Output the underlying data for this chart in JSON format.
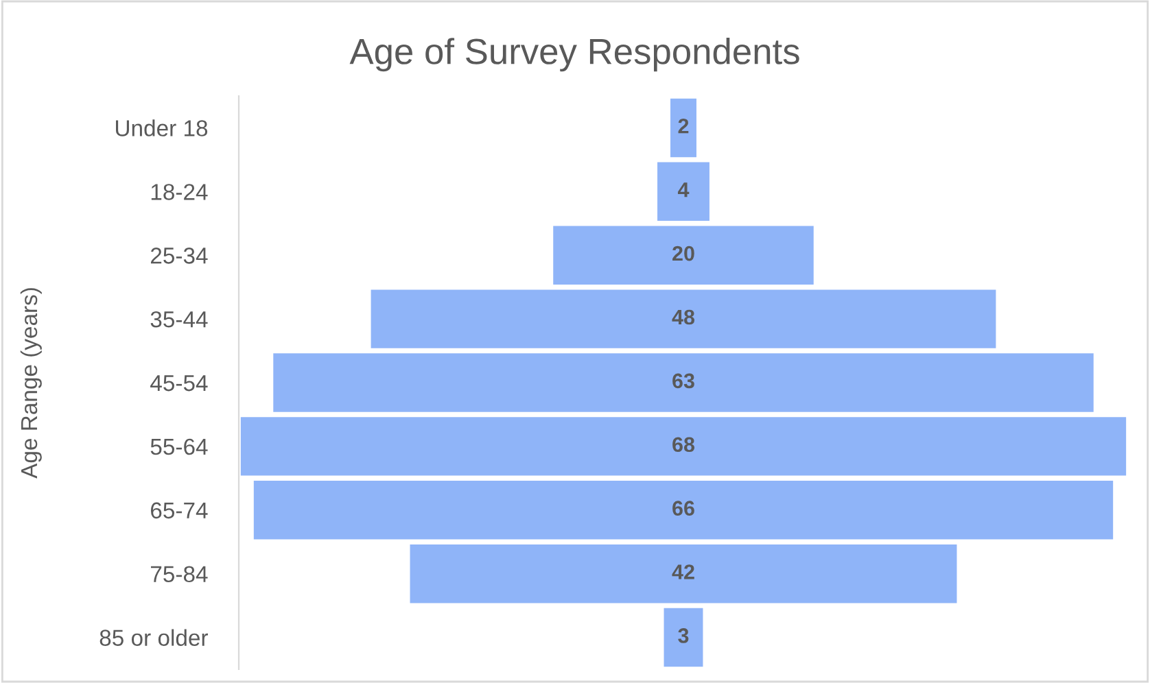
{
  "chart_data": {
    "type": "other",
    "title": "Age of Survey Respondents",
    "ylabel": "Age Range (years)",
    "categories": [
      "Under 18",
      "18-24",
      "25-34",
      "35-44",
      "45-54",
      "55-64",
      "65-74",
      "75-84",
      "85 or older"
    ],
    "values": [
      2,
      4,
      20,
      48,
      63,
      68,
      66,
      42,
      3
    ],
    "color": "#8fb4f8",
    "data_labels": true
  }
}
